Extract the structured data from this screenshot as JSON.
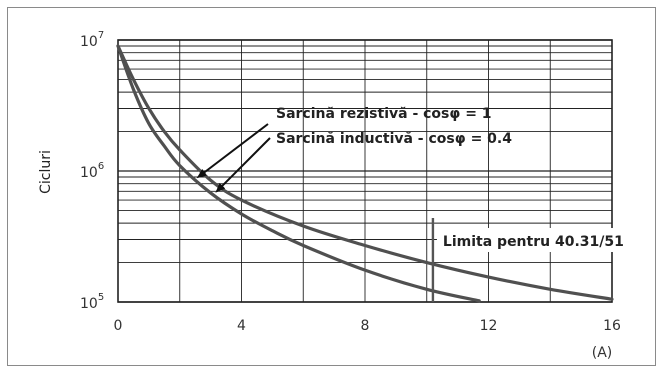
{
  "chart_data": {
    "type": "line",
    "title": "",
    "xlabel": "(A)",
    "ylabel": "Cicluri",
    "xlim": [
      0,
      16
    ],
    "ylim": [
      100000,
      10000000
    ],
    "y_scale": "log",
    "grid": true,
    "x_ticks": [
      0,
      4,
      8,
      12,
      16
    ],
    "x_tick_labels": [
      "0",
      "4",
      "8",
      "12",
      "16"
    ],
    "y_ticks": [
      {
        "value": 100000,
        "base": "10",
        "exp": "5"
      },
      {
        "value": 1000000,
        "base": "10",
        "exp": "6"
      },
      {
        "value": 10000000,
        "base": "10",
        "exp": "7"
      }
    ],
    "series": [
      {
        "name": "Sarcină rezistivă - cosφ = 1",
        "x": [
          0,
          0.5,
          1,
          1.5,
          2,
          3,
          4,
          6,
          8,
          10,
          12,
          14,
          16
        ],
        "y": [
          9000000,
          5000000,
          3000000,
          2000000,
          1450000,
          850000,
          600000,
          380000,
          270000,
          200000,
          155000,
          125000,
          105000
        ]
      },
      {
        "name": "Sarcină inductivă - cosφ = 0.4",
        "x": [
          0,
          0.5,
          1,
          1.5,
          2,
          3,
          4,
          5,
          6,
          8,
          10,
          11.7
        ],
        "y": [
          9000000,
          4200000,
          2300000,
          1550000,
          1100000,
          680000,
          470000,
          350000,
          270000,
          175000,
          125000,
          102000
        ]
      }
    ],
    "annotations": [
      {
        "text": "Sarcină rezistivă - cosφ = 1",
        "arrow_to": {
          "x": 2.6,
          "y": 900000
        }
      },
      {
        "text": "Sarcină inductivă - cosφ = 0.4",
        "arrow_to": {
          "x": 3.2,
          "y": 700000
        }
      },
      {
        "text": "Limita pentru 40.31/51",
        "line_x": 10.2
      }
    ],
    "colors": {
      "curve": "#505050",
      "grid": "#222222",
      "frame": "#8a8a8a"
    }
  }
}
